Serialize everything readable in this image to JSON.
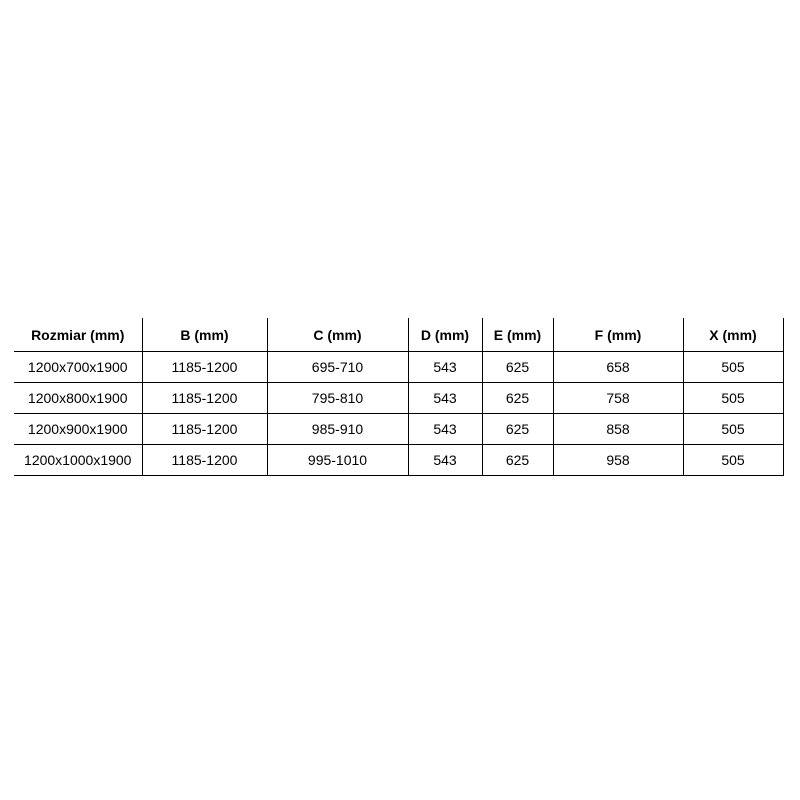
{
  "page": {
    "background_color": "#ffffff",
    "text_color": "#000000",
    "border_color": "#000000"
  },
  "table": {
    "description": "Shower enclosure size specification table",
    "columns": [
      "Rozmiar (mm)",
      "B (mm)",
      "C (mm)",
      "D (mm)",
      "E (mm)",
      "F (mm)",
      "X (mm)"
    ],
    "rows": [
      [
        "1200x700x1900",
        "1185-1200",
        "695-710",
        "543",
        "625",
        "658",
        "505"
      ],
      [
        "1200x800x1900",
        "1185-1200",
        "795-810",
        "543",
        "625",
        "758",
        "505"
      ],
      [
        "1200x900x1900",
        "1185-1200",
        "985-910",
        "543",
        "625",
        "858",
        "505"
      ],
      [
        "1200x1000x1900",
        "1185-1200",
        "995-1010",
        "543",
        "625",
        "958",
        "505"
      ]
    ]
  }
}
